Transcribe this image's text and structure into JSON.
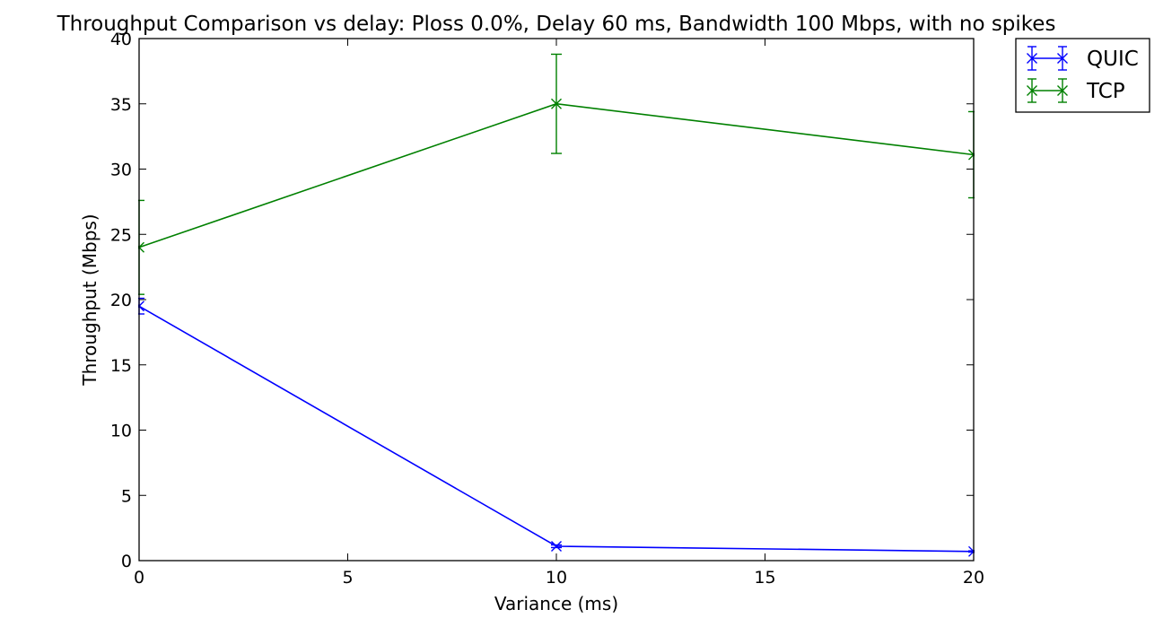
{
  "chart_data": {
    "type": "line",
    "title": "Throughput Comparison vs delay: Ploss 0.0%, Delay 60 ms, Bandwidth 100 Mbps, with no spikes",
    "xlabel": "Variance (ms)",
    "ylabel": "Throughput (Mbps)",
    "xlim": [
      0,
      20
    ],
    "ylim": [
      0,
      40
    ],
    "xticks": [
      0,
      5,
      10,
      15,
      20
    ],
    "yticks": [
      0,
      5,
      10,
      15,
      20,
      25,
      30,
      35,
      40
    ],
    "grid": false,
    "legend_position": "outside-top-right",
    "x": [
      0,
      10,
      20
    ],
    "series": [
      {
        "name": "QUIC",
        "color": "#0000ff",
        "values": [
          19.5,
          1.1,
          0.7
        ],
        "errors": [
          0.6,
          0.1,
          0.05
        ],
        "marker": "x"
      },
      {
        "name": "TCP",
        "color": "#008000",
        "values": [
          24.0,
          35.0,
          31.1
        ],
        "errors": [
          3.6,
          3.8,
          3.3
        ],
        "marker": "x"
      }
    ]
  }
}
